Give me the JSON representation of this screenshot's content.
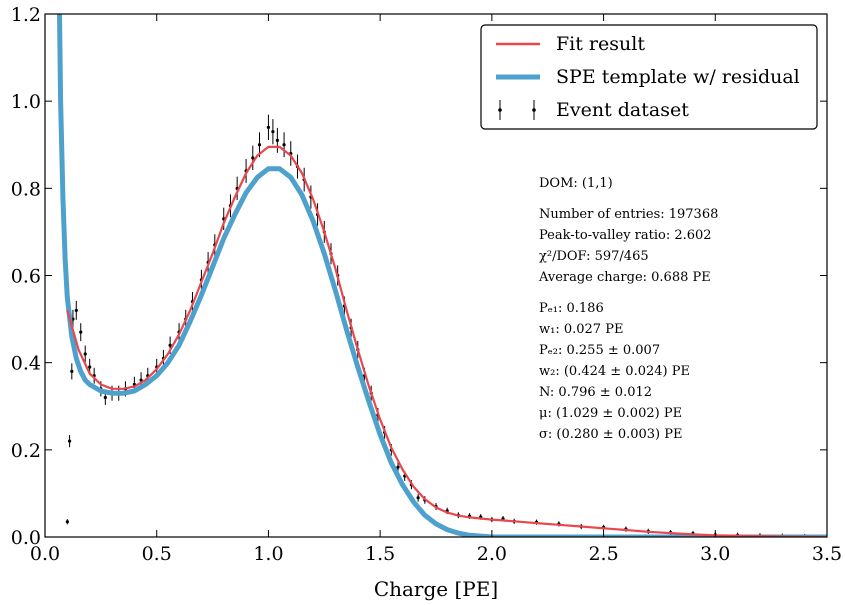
{
  "chart_data": {
    "type": "scatter",
    "xlabel": "Charge [PE]",
    "ylabel": "",
    "xlim": [
      0.0,
      3.5
    ],
    "ylim": [
      0.0,
      1.2
    ],
    "grid": false,
    "legend_placement": "top-right",
    "x_ticks": [
      "0.0",
      "0.5",
      "1.0",
      "1.5",
      "2.0",
      "2.5",
      "3.0",
      "3.5"
    ],
    "y_ticks": [
      "0.0",
      "0.2",
      "0.4",
      "0.6",
      "0.8",
      "1.0",
      "1.2"
    ],
    "colors": {
      "fit": "#e8474e",
      "template": "#4ea1cc",
      "data": "#000000"
    },
    "legend": [
      {
        "key": "fit",
        "label": "Fit result"
      },
      {
        "key": "template",
        "label": "SPE template w/ residual"
      },
      {
        "key": "data",
        "label": "Event dataset"
      }
    ],
    "series": [
      {
        "name": "Fit result",
        "kind": "line",
        "points": [
          [
            0.1,
            0.52
          ],
          [
            0.15,
            0.43
          ],
          [
            0.2,
            0.375
          ],
          [
            0.25,
            0.35
          ],
          [
            0.3,
            0.34
          ],
          [
            0.35,
            0.34
          ],
          [
            0.4,
            0.345
          ],
          [
            0.45,
            0.36
          ],
          [
            0.5,
            0.385
          ],
          [
            0.55,
            0.42
          ],
          [
            0.6,
            0.465
          ],
          [
            0.65,
            0.52
          ],
          [
            0.7,
            0.585
          ],
          [
            0.75,
            0.65
          ],
          [
            0.8,
            0.72
          ],
          [
            0.85,
            0.78
          ],
          [
            0.9,
            0.835
          ],
          [
            0.95,
            0.875
          ],
          [
            1.0,
            0.895
          ],
          [
            1.05,
            0.895
          ],
          [
            1.1,
            0.875
          ],
          [
            1.15,
            0.835
          ],
          [
            1.2,
            0.775
          ],
          [
            1.25,
            0.7
          ],
          [
            1.3,
            0.615
          ],
          [
            1.35,
            0.52
          ],
          [
            1.4,
            0.43
          ],
          [
            1.45,
            0.345
          ],
          [
            1.5,
            0.27
          ],
          [
            1.55,
            0.205
          ],
          [
            1.6,
            0.155
          ],
          [
            1.65,
            0.115
          ],
          [
            1.7,
            0.087
          ],
          [
            1.75,
            0.068
          ],
          [
            1.8,
            0.056
          ],
          [
            1.85,
            0.049
          ],
          [
            1.9,
            0.045
          ],
          [
            2.0,
            0.04
          ],
          [
            2.1,
            0.036
          ],
          [
            2.2,
            0.032
          ],
          [
            2.3,
            0.028
          ],
          [
            2.4,
            0.024
          ],
          [
            2.5,
            0.02
          ],
          [
            2.6,
            0.016
          ],
          [
            2.7,
            0.012
          ],
          [
            2.8,
            0.009
          ],
          [
            2.9,
            0.006
          ],
          [
            3.0,
            0.004
          ],
          [
            3.1,
            0.003
          ],
          [
            3.2,
            0.002
          ],
          [
            3.3,
            0.001
          ],
          [
            3.5,
            0.0
          ]
        ]
      },
      {
        "name": "SPE template w/ residual",
        "kind": "line",
        "points": [
          [
            0.065,
            1.2
          ],
          [
            0.07,
            1.0
          ],
          [
            0.08,
            0.78
          ],
          [
            0.09,
            0.64
          ],
          [
            0.1,
            0.55
          ],
          [
            0.12,
            0.46
          ],
          [
            0.14,
            0.41
          ],
          [
            0.16,
            0.38
          ],
          [
            0.18,
            0.36
          ],
          [
            0.2,
            0.35
          ],
          [
            0.25,
            0.335
          ],
          [
            0.3,
            0.33
          ],
          [
            0.35,
            0.33
          ],
          [
            0.4,
            0.335
          ],
          [
            0.45,
            0.35
          ],
          [
            0.5,
            0.37
          ],
          [
            0.55,
            0.4
          ],
          [
            0.6,
            0.44
          ],
          [
            0.65,
            0.495
          ],
          [
            0.7,
            0.555
          ],
          [
            0.75,
            0.62
          ],
          [
            0.8,
            0.685
          ],
          [
            0.85,
            0.74
          ],
          [
            0.9,
            0.79
          ],
          [
            0.95,
            0.825
          ],
          [
            1.0,
            0.845
          ],
          [
            1.05,
            0.845
          ],
          [
            1.1,
            0.825
          ],
          [
            1.15,
            0.785
          ],
          [
            1.2,
            0.725
          ],
          [
            1.25,
            0.65
          ],
          [
            1.3,
            0.565
          ],
          [
            1.35,
            0.475
          ],
          [
            1.4,
            0.39
          ],
          [
            1.45,
            0.31
          ],
          [
            1.5,
            0.235
          ],
          [
            1.55,
            0.17
          ],
          [
            1.6,
            0.12
          ],
          [
            1.65,
            0.08
          ],
          [
            1.7,
            0.05
          ],
          [
            1.75,
            0.03
          ],
          [
            1.8,
            0.017
          ],
          [
            1.85,
            0.009
          ],
          [
            1.9,
            0.004
          ],
          [
            1.95,
            0.002
          ],
          [
            2.0,
            0.0
          ],
          [
            3.5,
            0.0
          ]
        ]
      },
      {
        "name": "Event dataset",
        "kind": "errorbar-points",
        "points": [
          [
            0.1,
            0.035
          ],
          [
            0.11,
            0.22
          ],
          [
            0.12,
            0.38
          ],
          [
            0.125,
            0.5
          ],
          [
            0.14,
            0.52
          ],
          [
            0.16,
            0.47
          ],
          [
            0.18,
            0.42
          ],
          [
            0.2,
            0.39
          ],
          [
            0.22,
            0.37
          ],
          [
            0.25,
            0.34
          ],
          [
            0.27,
            0.32
          ],
          [
            0.3,
            0.33
          ],
          [
            0.33,
            0.33
          ],
          [
            0.36,
            0.34
          ],
          [
            0.4,
            0.35
          ],
          [
            0.43,
            0.36
          ],
          [
            0.46,
            0.37
          ],
          [
            0.5,
            0.39
          ],
          [
            0.53,
            0.41
          ],
          [
            0.56,
            0.44
          ],
          [
            0.6,
            0.47
          ],
          [
            0.63,
            0.5
          ],
          [
            0.66,
            0.54
          ],
          [
            0.7,
            0.59
          ],
          [
            0.73,
            0.63
          ],
          [
            0.76,
            0.67
          ],
          [
            0.8,
            0.73
          ],
          [
            0.83,
            0.76
          ],
          [
            0.86,
            0.8
          ],
          [
            0.9,
            0.84
          ],
          [
            0.93,
            0.87
          ],
          [
            0.96,
            0.9
          ],
          [
            1.0,
            0.94
          ],
          [
            1.02,
            0.93
          ],
          [
            1.04,
            0.91
          ],
          [
            1.07,
            0.9
          ],
          [
            1.1,
            0.88
          ],
          [
            1.13,
            0.85
          ],
          [
            1.16,
            0.82
          ],
          [
            1.19,
            0.78
          ],
          [
            1.22,
            0.74
          ],
          [
            1.25,
            0.7
          ],
          [
            1.28,
            0.65
          ],
          [
            1.31,
            0.6
          ],
          [
            1.34,
            0.53
          ],
          [
            1.37,
            0.48
          ],
          [
            1.4,
            0.43
          ],
          [
            1.43,
            0.37
          ],
          [
            1.46,
            0.33
          ],
          [
            1.49,
            0.28
          ],
          [
            1.52,
            0.24
          ],
          [
            1.55,
            0.2
          ],
          [
            1.58,
            0.16
          ],
          [
            1.61,
            0.14
          ],
          [
            1.64,
            0.12
          ],
          [
            1.67,
            0.09
          ],
          [
            1.7,
            0.085
          ],
          [
            1.75,
            0.07
          ],
          [
            1.8,
            0.06
          ],
          [
            1.85,
            0.05
          ],
          [
            1.9,
            0.048
          ],
          [
            1.95,
            0.046
          ],
          [
            2.0,
            0.04
          ],
          [
            2.05,
            0.042
          ],
          [
            2.1,
            0.036
          ],
          [
            2.2,
            0.034
          ],
          [
            2.3,
            0.03
          ],
          [
            2.4,
            0.024
          ],
          [
            2.5,
            0.022
          ],
          [
            2.6,
            0.018
          ],
          [
            2.7,
            0.013
          ],
          [
            2.8,
            0.01
          ],
          [
            2.9,
            0.008
          ],
          [
            3.0,
            0.005
          ],
          [
            3.1,
            0.004
          ],
          [
            3.2,
            0.003
          ],
          [
            3.3,
            0.002
          ],
          [
            3.4,
            0.001
          ]
        ]
      }
    ],
    "annotations": [
      "DOM: (1,1)",
      "",
      "Number of entries: 197368",
      "Peak-to-valley ratio: 2.602",
      "χ²/DOF: 597/465",
      "Average charge: 0.688 PE",
      "",
      "Pₑ₁: 0.186",
      "w₁: 0.027 PE",
      "Pₑ₂: 0.255 ± 0.007",
      "w₂: (0.424 ± 0.024) PE",
      "N: 0.796 ± 0.012",
      "μ: (1.029 ± 0.002) PE",
      "σ: (0.280 ± 0.003) PE"
    ]
  }
}
